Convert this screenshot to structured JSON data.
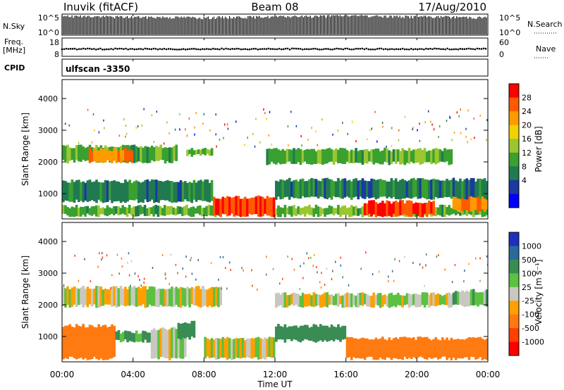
{
  "header": {
    "station": "Inuvik (fitACF)",
    "beam": "Beam 08",
    "date": "17/Aug/2010"
  },
  "top_panels": {
    "nsky_label": "N.Sky",
    "nsky_ticks": [
      "10^5",
      "10^0"
    ],
    "nsearch_label": "N.Search",
    "nsearch_ticks": [
      "10^5",
      "10^0"
    ],
    "freq_label": "Freq.",
    "freq_unit": "[MHz]",
    "freq_ticks": [
      "18",
      "8"
    ],
    "nave_label": "Nave",
    "nave_ticks": [
      "60",
      "0"
    ],
    "cpid_label": "CPID",
    "cpid_value": "ulfscan -3350"
  },
  "x_axis": {
    "label": "Time UT",
    "ticks": [
      "00:00",
      "04:00",
      "08:00",
      "12:00",
      "16:00",
      "20:00",
      "00:00"
    ]
  },
  "power_colorbar": {
    "label": "Power [dB]",
    "ticks": [
      "28",
      "24",
      "20",
      "16",
      "12",
      "8",
      "4"
    ],
    "colors": [
      "#ff0000",
      "#ff5a00",
      "#ff9a00",
      "#f2d200",
      "#9ac630",
      "#3aa030",
      "#207a50",
      "#1a3aa0",
      "#0000ff"
    ]
  },
  "velocity_colorbar": {
    "label": "Velocity [m s⁻¹]",
    "ticks": [
      "1000",
      "500",
      "100",
      "25",
      "-25",
      "-100",
      "-500",
      "-1000"
    ],
    "colors": [
      "#1e2fbe",
      "#2a6a9a",
      "#3a8c55",
      "#5cc040",
      "#c8c8c0",
      "#ffa000",
      "#ff7a10",
      "#ff4000",
      "#ff0000"
    ]
  },
  "chart_data": [
    {
      "type": "line",
      "title": "N.Sky / N.Search",
      "xlabel": "Time UT",
      "x_range": [
        "00:00",
        "24:00"
      ],
      "ylim": [
        1,
        100000
      ],
      "log_scale": true,
      "series": [
        {
          "name": "N.Sky",
          "x": [
            "00:00",
            "02:00",
            "04:00",
            "06:00",
            "08:00",
            "10:00",
            "12:00",
            "14:00",
            "16:00",
            "18:00",
            "20:00",
            "22:00",
            "24:00"
          ],
          "values": [
            30000,
            25000,
            20000,
            18000,
            15000,
            20000,
            22000,
            30000,
            40000,
            30000,
            25000,
            20000,
            15000
          ]
        }
      ]
    },
    {
      "type": "line",
      "title": "Freq. / Nave",
      "xlabel": "Time UT",
      "x_range": [
        "00:00",
        "24:00"
      ],
      "ylim": [
        8,
        18
      ],
      "series": [
        {
          "name": "Freq.",
          "x": [
            "00:00",
            "04:00",
            "08:00",
            "12:00",
            "16:00",
            "20:00",
            "24:00"
          ],
          "values": [
            12,
            12,
            12,
            12,
            12,
            12,
            12
          ]
        }
      ]
    },
    {
      "type": "heatmap",
      "title": "Power [dB]",
      "xlabel": "Time UT",
      "ylabel": "Slant Range [km]",
      "x_range": [
        "00:00",
        "24:00"
      ],
      "ylim": [
        200,
        4600
      ],
      "y_ticks": [
        1000,
        2000,
        3000,
        4000
      ],
      "color_scale": [
        0,
        30
      ],
      "bands": [
        {
          "t0": 0.0,
          "t1": 9.2,
          "r0": 250,
          "r1": 650,
          "level": 12
        },
        {
          "t0": 0.0,
          "t1": 8.5,
          "r0": 700,
          "r1": 1450,
          "level": 8
        },
        {
          "t0": 0.0,
          "t1": 6.5,
          "r0": 1950,
          "r1": 2550,
          "level": 12
        },
        {
          "t0": 1.5,
          "t1": 4.0,
          "r0": 1950,
          "r1": 2450,
          "level": 24
        },
        {
          "t0": 7.0,
          "t1": 8.5,
          "r0": 2150,
          "r1": 2450,
          "level": 12
        },
        {
          "t0": 8.5,
          "t1": 12.0,
          "r0": 250,
          "r1": 950,
          "level": 28
        },
        {
          "t0": 12.0,
          "t1": 24.0,
          "r0": 250,
          "r1": 650,
          "level": 12
        },
        {
          "t0": 17.0,
          "t1": 21.0,
          "r0": 250,
          "r1": 800,
          "level": 28
        },
        {
          "t0": 22.0,
          "t1": 24.0,
          "r0": 400,
          "r1": 1100,
          "level": 24
        },
        {
          "t0": 11.5,
          "t1": 22.0,
          "r0": 1900,
          "r1": 2450,
          "level": 12
        },
        {
          "t0": 12.0,
          "t1": 24.0,
          "r0": 800,
          "r1": 1500,
          "level": 8
        }
      ]
    },
    {
      "type": "heatmap",
      "title": "Velocity [m s⁻¹]",
      "xlabel": "Time UT",
      "ylabel": "Slant Range [km]",
      "x_range": [
        "00:00",
        "24:00"
      ],
      "ylim": [
        200,
        4600
      ],
      "y_ticks": [
        1000,
        2000,
        3000,
        4000
      ],
      "color_scale": [
        -1000,
        1000
      ],
      "bands": [
        {
          "t0": 0.0,
          "t1": 3.0,
          "r0": 250,
          "r1": 1400,
          "level": -300
        },
        {
          "t0": 3.0,
          "t1": 5.0,
          "r0": 800,
          "r1": 1200,
          "level": 100
        },
        {
          "t0": 5.0,
          "t1": 7.0,
          "r0": 250,
          "r1": 1300,
          "level": 0
        },
        {
          "t0": 6.5,
          "t1": 7.5,
          "r0": 900,
          "r1": 1500,
          "level": 300
        },
        {
          "t0": 0.0,
          "t1": 9.0,
          "r0": 1900,
          "r1": 2600,
          "level": 0
        },
        {
          "t0": 8.0,
          "t1": 12.0,
          "r0": 250,
          "r1": 1000,
          "level": 0
        },
        {
          "t0": 12.0,
          "t1": 16.0,
          "r0": 800,
          "r1": 1400,
          "level": 300
        },
        {
          "t0": 12.0,
          "t1": 22.0,
          "r0": 1900,
          "r1": 2400,
          "level": 0
        },
        {
          "t0": 16.0,
          "t1": 24.0,
          "r0": 250,
          "r1": 1000,
          "level": -300
        },
        {
          "t0": 22.0,
          "t1": 24.0,
          "r0": 1900,
          "r1": 2500,
          "level": 50
        }
      ]
    }
  ]
}
